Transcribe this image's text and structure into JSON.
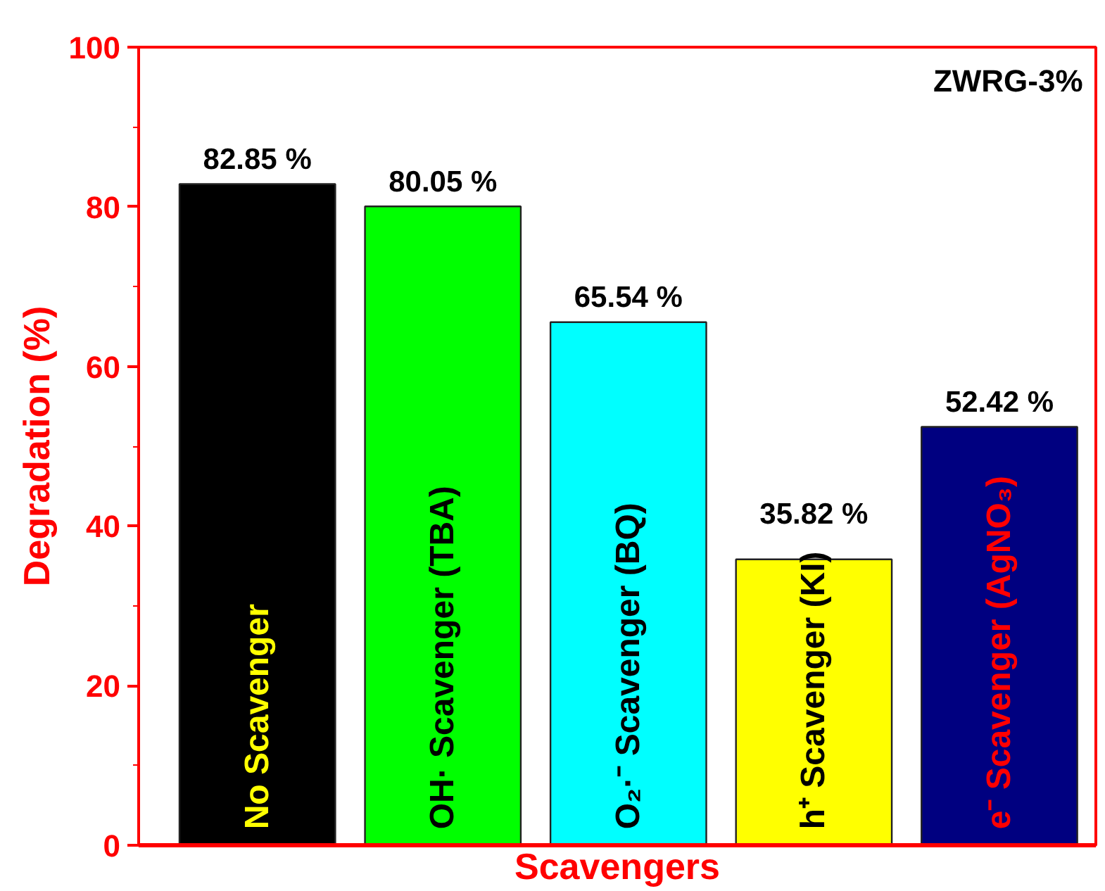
{
  "chart_data": {
    "type": "bar",
    "categories": [
      "No Scavenger",
      "OH· Scavenger (TBA)",
      "O₂·⁻ Scavenger (BQ)",
      "h⁺ Scavenger (KI)",
      "e⁻ Scavenger (AgNO₃)"
    ],
    "values": [
      82.85,
      80.05,
      65.54,
      35.82,
      52.42
    ],
    "colors": [
      "#000000",
      "#00ff00",
      "#00ffff",
      "#ffff00",
      "#000080"
    ],
    "value_labels": [
      "82.85 %",
      "80.05 %",
      "65.54 %",
      "35.82 %",
      "52.42 %"
    ],
    "xlabel": "Scavengers",
    "ylabel": "Degradation (%)",
    "annotations": [
      "ZWRG-3%"
    ],
    "ylim": [
      0,
      100
    ],
    "yticks": [
      0,
      20,
      40,
      60,
      80,
      100
    ],
    "grid": false
  }
}
